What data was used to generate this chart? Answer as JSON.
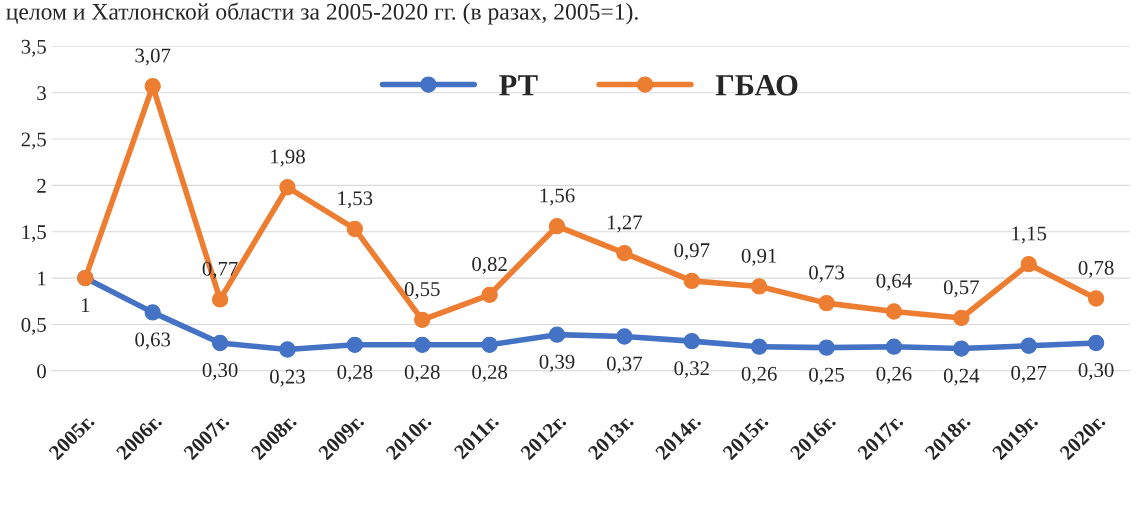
{
  "chart_data": {
    "type": "line",
    "title": "целом и Хатлонской области за 2005-2020 гг. (в разах, 2005=1).",
    "categories": [
      "2005г.",
      "2006г.",
      "2007г.",
      "2008г.",
      "2009г.",
      "2010г.",
      "2011г.",
      "2012г.",
      "2013г.",
      "2014г.",
      "2015г.",
      "2016г.",
      "2017г.",
      "2018г.",
      "2019г.",
      "2020г."
    ],
    "series": [
      {
        "name": "РТ",
        "color": "#4472c4",
        "values": [
          1,
          0.63,
          0.3,
          0.23,
          0.28,
          0.28,
          0.28,
          0.39,
          0.37,
          0.32,
          0.26,
          0.25,
          0.26,
          0.24,
          0.27,
          0.3
        ],
        "value_labels": [
          "1",
          "0,63",
          "0,30",
          "0,23",
          "0,28",
          "0,28",
          "0,28",
          "0,39",
          "0,37",
          "0,32",
          "0,26",
          "0,25",
          "0,26",
          "0,24",
          "0,27",
          "0,30"
        ]
      },
      {
        "name": "ГБАО",
        "color": "#ed7d31",
        "values": [
          1,
          3.07,
          0.77,
          1.98,
          1.53,
          0.55,
          0.82,
          1.56,
          1.27,
          0.97,
          0.91,
          0.73,
          0.64,
          0.57,
          1.15,
          0.78
        ],
        "value_labels": [
          null,
          "3,07",
          "0,77",
          "1,98",
          "1,53",
          "0,55",
          "0,82",
          "1,56",
          "1,27",
          "0,97",
          "0,91",
          "0,73",
          "0,64",
          "0,57",
          "1,15",
          "0,78"
        ]
      }
    ],
    "ylim": [
      0,
      3.5
    ],
    "yticks": [
      {
        "value": 0,
        "label": "0"
      },
      {
        "value": 0.5,
        "label": "0,5"
      },
      {
        "value": 1,
        "label": "1"
      },
      {
        "value": 1.5,
        "label": "1,5"
      },
      {
        "value": 2,
        "label": "2"
      },
      {
        "value": 2.5,
        "label": "2,5"
      },
      {
        "value": 3,
        "label": "3"
      },
      {
        "value": 3.5,
        "label": "3,5"
      }
    ],
    "grid": "y",
    "legend": "top",
    "marker": "circle",
    "line_style": "solid"
  }
}
